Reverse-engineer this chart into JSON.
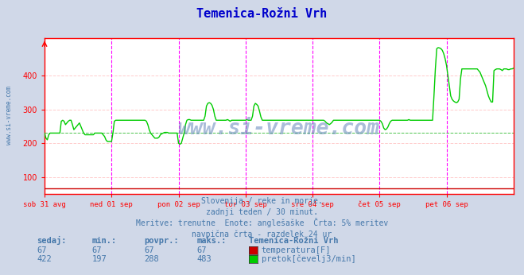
{
  "title": "Temenica-Rožni Vrh",
  "title_color": "#0000cc",
  "bg_color": "#d0d8e8",
  "plot_bg_color": "#ffffff",
  "grid_color_h": "#ffcccc",
  "grid_color_v": "#ff00ff",
  "axis_color": "#ff0000",
  "text_color": "#4477aa",
  "ylabel_values": [
    100,
    200,
    300,
    400
  ],
  "ylim": [
    50,
    510
  ],
  "xlim": [
    0,
    336
  ],
  "xlabel_ticks": [
    0,
    48,
    96,
    144,
    192,
    240,
    288
  ],
  "xlabel_labels": [
    "sob 31 avg",
    "ned 01 sep",
    "pon 02 sep",
    "tor 03 sep",
    "sre 04 sep",
    "čet 05 sep",
    "pet 06 sep"
  ],
  "watermark": "www.si-vreme.com",
  "subtitle1": "Slovenija / reke in morje.",
  "subtitle2": "zadnji teden / 30 minut.",
  "subtitle3": "Meritve: trenutne  Enote: anglešaške  Črta: 5% meritev",
  "subtitle4": "navpična črta - razdelek 24 ur",
  "legend_station": "Temenica-Rožni Vrh",
  "legend_items": [
    {
      "label": "temperatura[F]",
      "color": "#cc0000"
    },
    {
      "label": "pretok[čevelj3/min]",
      "color": "#00cc00"
    }
  ],
  "stats_headers": [
    "sedaj:",
    "min.:",
    "povpr.:",
    "maks.:"
  ],
  "stats_rows": [
    [
      67,
      67,
      67,
      67
    ],
    [
      422,
      197,
      288,
      483
    ]
  ],
  "temp_color": "#cc0000",
  "flow_color": "#00cc00",
  "n_points": 337,
  "temp_value": 67
}
